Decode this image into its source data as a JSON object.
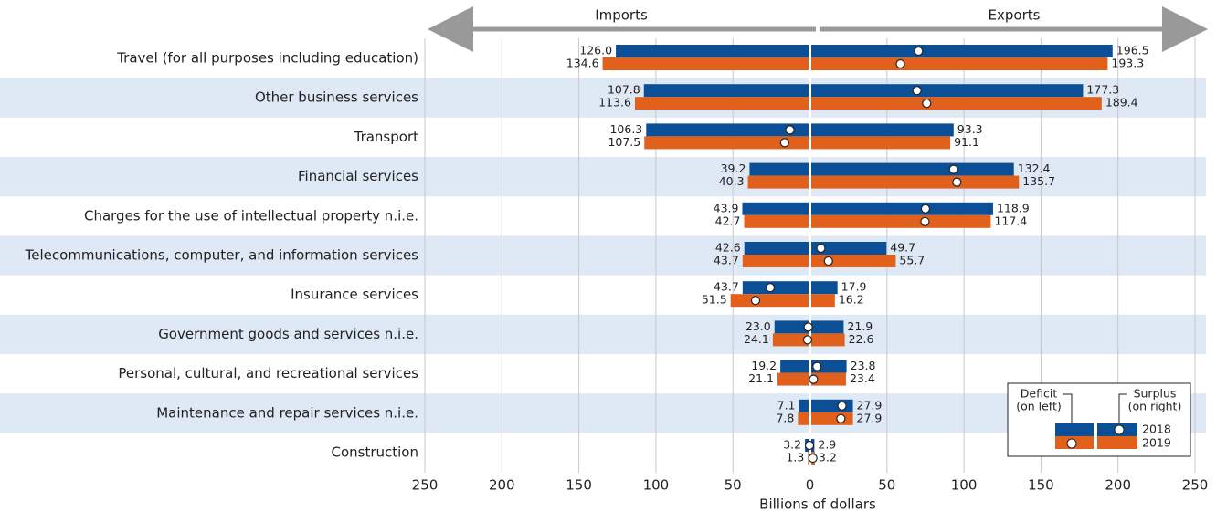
{
  "chart_data": {
    "type": "butterfly_bar",
    "headers": {
      "left": "Imports",
      "right": "Exports"
    },
    "xlabel": "Billions of dollars",
    "categories": [
      "Travel (for all purposes including education)",
      "Other business services",
      "Transport",
      "Financial services",
      "Charges for the use of intellectual property n.i.e.",
      "Telecommunications, computer, and information services",
      "Insurance services",
      "Government goods and services n.i.e.",
      "Personal, cultural, and recreational services",
      "Maintenance and repair services n.i.e.",
      "Construction"
    ],
    "series": [
      {
        "name": "2018",
        "color": "#0b4f97",
        "imports": [
          126.0,
          107.8,
          106.3,
          39.2,
          43.9,
          42.6,
          43.7,
          23.0,
          19.2,
          7.1,
          3.2
        ],
        "imports_labels": [
          "126.0",
          "107.8",
          "106.3",
          "39.2",
          "43.9",
          "42.6",
          "43.7",
          "23.0",
          "19.2",
          "7.1",
          "3.2"
        ],
        "exports": [
          196.5,
          177.3,
          93.3,
          132.4,
          118.9,
          49.7,
          17.9,
          21.9,
          23.8,
          27.9,
          2.9
        ],
        "exports_labels": [
          "196.5",
          "177.3",
          "93.3",
          "132.4",
          "118.9",
          "49.7",
          "17.9",
          "21.9",
          "23.8",
          "27.9",
          "2.9"
        ]
      },
      {
        "name": "2019",
        "color": "#e0601c",
        "imports": [
          134.6,
          113.6,
          107.5,
          40.3,
          42.7,
          43.7,
          51.5,
          24.1,
          21.1,
          7.8,
          1.3
        ],
        "imports_labels": [
          "134.6",
          "113.6",
          "107.5",
          "40.3",
          "42.7",
          "43.7",
          "51.5",
          "24.1",
          "21.1",
          "7.8",
          "1.3"
        ],
        "exports": [
          193.3,
          189.4,
          91.1,
          135.7,
          117.4,
          55.7,
          16.2,
          22.6,
          23.4,
          27.9,
          3.2
        ],
        "exports_labels": [
          "193.3",
          "189.4",
          "91.1",
          "135.7",
          "117.4",
          "55.7",
          "16.2",
          "22.6",
          "23.4",
          "27.9",
          "3.2"
        ]
      }
    ],
    "xlim": [
      -250,
      250
    ],
    "xticks": [
      {
        "value": -250,
        "label": "250"
      },
      {
        "value": -200,
        "label": "200"
      },
      {
        "value": -150,
        "label": "150"
      },
      {
        "value": -100,
        "label": "100"
      },
      {
        "value": -50,
        "label": "50"
      },
      0,
      50,
      100,
      150,
      200,
      250
    ],
    "grid": true,
    "legend": {
      "position": "lower right",
      "deficit": [
        "Deficit",
        "(on left)"
      ],
      "surplus": [
        "Surplus",
        "(on right)"
      ]
    }
  }
}
